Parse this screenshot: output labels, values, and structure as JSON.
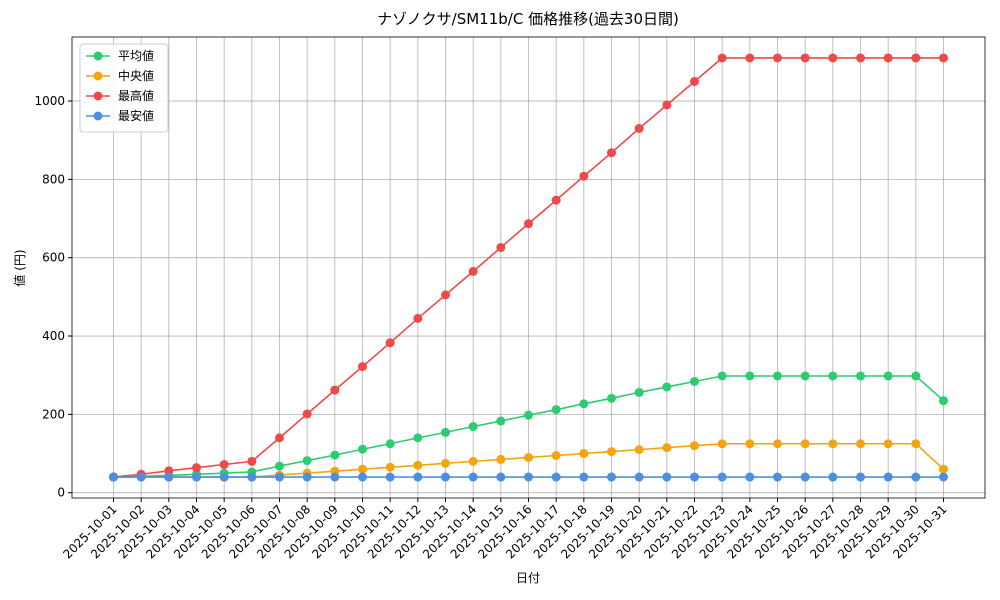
{
  "chart_data": {
    "type": "line",
    "title": "ナゾノクサ/SM11b/C 価格推移(過去30日間)",
    "x_label": "日付",
    "y_label": "値 (円)",
    "categories": [
      "2025-10-01",
      "2025-10-02",
      "2025-10-03",
      "2025-10-04",
      "2025-10-05",
      "2025-10-06",
      "2025-10-07",
      "2025-10-08",
      "2025-10-09",
      "2025-10-10",
      "2025-10-11",
      "2025-10-12",
      "2025-10-13",
      "2025-10-14",
      "2025-10-15",
      "2025-10-16",
      "2025-10-17",
      "2025-10-18",
      "2025-10-19",
      "2025-10-20",
      "2025-10-21",
      "2025-10-22",
      "2025-10-23",
      "2025-10-24",
      "2025-10-25",
      "2025-10-26",
      "2025-10-27",
      "2025-10-28",
      "2025-10-29",
      "2025-10-30",
      "2025-10-31"
    ],
    "series": [
      {
        "name": "平均値",
        "color": "#2ecc71",
        "values": [
          40,
          42,
          44,
          47,
          50,
          53,
          68,
          82,
          96,
          111,
          125,
          140,
          154,
          169,
          183,
          198,
          212,
          227,
          241,
          256,
          270,
          284,
          298,
          298,
          298,
          298,
          298,
          298,
          298,
          298,
          235
        ]
      },
      {
        "name": "中央値",
        "color": "#f5a30f",
        "values": [
          40,
          40,
          40,
          40,
          40,
          40,
          45,
          50,
          55,
          60,
          65,
          70,
          75,
          80,
          85,
          90,
          95,
          100,
          105,
          110,
          115,
          120,
          125,
          125,
          125,
          125,
          125,
          125,
          125,
          125,
          60
        ]
      },
      {
        "name": "最高値",
        "color": "#ef4a4a",
        "values": [
          40,
          47,
          56,
          64,
          72,
          80,
          140,
          201,
          262,
          322,
          383,
          445,
          505,
          565,
          626,
          687,
          747,
          808,
          868,
          930,
          990,
          1050,
          1110,
          1110,
          1110,
          1110,
          1110,
          1110,
          1110,
          1110,
          1110
        ]
      },
      {
        "name": "最安値",
        "color": "#4a90e2",
        "values": [
          40,
          40,
          40,
          40,
          40,
          40,
          40,
          40,
          40,
          40,
          40,
          40,
          40,
          40,
          40,
          40,
          40,
          40,
          40,
          40,
          40,
          40,
          40,
          40,
          40,
          40,
          40,
          40,
          40,
          40,
          40
        ]
      }
    ],
    "ylim": [
      -13.5,
      1163.5
    ],
    "yticks": [
      0,
      200,
      400,
      600,
      800,
      1000
    ],
    "grid": true,
    "legend": "upper-left"
  }
}
